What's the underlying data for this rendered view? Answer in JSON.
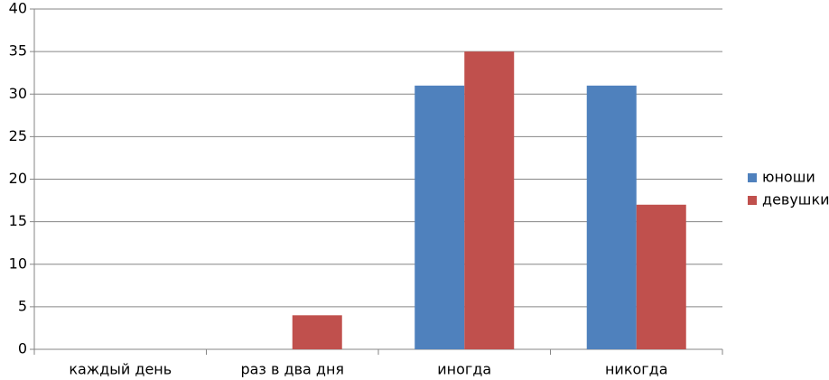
{
  "chart_data": {
    "type": "bar",
    "categories": [
      "каждый день",
      "раз в два дня",
      "иногда",
      "никогда"
    ],
    "series": [
      {
        "name": "юноши",
        "color": "#4f81bd",
        "values": [
          0,
          0,
          31,
          31
        ]
      },
      {
        "name": "девушки",
        "color": "#c0504d",
        "values": [
          0,
          4,
          35,
          17
        ]
      }
    ],
    "ylim": [
      0,
      40
    ],
    "yticks": [
      0,
      5,
      10,
      15,
      20,
      25,
      30,
      35,
      40
    ],
    "grid": true,
    "legend": "right"
  }
}
